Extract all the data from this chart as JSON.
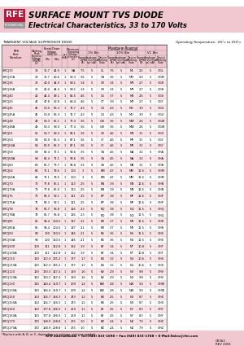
{
  "title1": "SURFACE MOUNT TVS DIODE",
  "title2": "Electrical Characteristics, 33 to 170 Volts",
  "header_bg": "#f2c8d0",
  "table_header_bg": "#f2c8d0",
  "table_row_even": "#fce4e8",
  "table_row_odd": "#ffffff",
  "logo_red": "#b8193c",
  "logo_gray": "#999999",
  "footer_text": "RFE International • Tel:(949) 833-1098 • Fax:(949) 833-1788 • E-Mail:Sales@rfei.com",
  "doc_num": "CR363",
  "doc_date": "REV 2001",
  "table_title": "TRANSIENT VOLTAGE SUPPRESSOR DIODE",
  "operating_temp": "Operating Temperature: -65°c to 150°c",
  "note": "*Replace with A, B, or C, depending on wattage and size needed.",
  "rows": [
    [
      "SMCJ33",
      "33",
      "36.7",
      "44.9",
      "1",
      "NA",
      "7.5",
      "5",
      "CL",
      "7.6",
      "5",
      "ML",
      "2.5",
      "5",
      "GGL"
    ],
    [
      "SMCJ33A",
      "33",
      "36.7",
      "40.6",
      "1",
      "53.3",
      "3.6",
      "5",
      "CN",
      "3.6",
      "5",
      "MN",
      "2.9",
      "5",
      "GGM"
    ],
    [
      "SMCJ36",
      "36",
      "40.0",
      "44.9",
      "1",
      "58.1",
      "3.4",
      "5",
      "CR",
      "3.4",
      "5",
      "MR",
      "2.7",
      "5",
      "GGR"
    ],
    [
      "SMCJ36A",
      "36",
      "40.0",
      "44.4",
      "1",
      "58.1",
      "3.4",
      "5",
      "CR",
      "3.4",
      "5",
      "MR",
      "2.7",
      "5",
      "GGR"
    ],
    [
      "SMCJ40",
      "40",
      "44.4",
      "49.1",
      "1",
      "64.5",
      "4.6",
      "5",
      "CS",
      "3.7",
      "5",
      "MS",
      "2.6",
      "5",
      "GGS"
    ],
    [
      "SMCJ43",
      "43",
      "47.8",
      "52.8",
      "1",
      "69.4",
      "4.6",
      "5",
      "CT",
      "3.9",
      "5",
      "MT",
      "2.7",
      "5",
      "GGT"
    ],
    [
      "SMCJ45",
      "45",
      "50.0",
      "55.3",
      "1",
      "72.7",
      "4.3",
      "5",
      "CU",
      "4.3",
      "5",
      "MU",
      "3.0",
      "5",
      "GGU"
    ],
    [
      "SMCJ45A",
      "45",
      "50.0",
      "55.3",
      "1",
      "72.7",
      "4.3",
      "5",
      "CU",
      "4.3",
      "5",
      "MU",
      "3.0",
      "5",
      "GGU"
    ],
    [
      "SMCJ48",
      "48",
      "53.3",
      "65.1",
      "1",
      "77.4",
      "3.6",
      "5",
      "CW",
      "3.6",
      "5",
      "MW",
      "2.6",
      "5",
      "GGW"
    ],
    [
      "SMCJ48A",
      "48",
      "53.3",
      "58.9",
      "1",
      "77.4",
      "3.6",
      "5",
      "CW",
      "3.6",
      "5",
      "MW",
      "2.6",
      "5",
      "GGW"
    ],
    [
      "SMCJ51",
      "51",
      "56.7",
      "69.3",
      "1",
      "83.1",
      "3.6",
      "5",
      "CX",
      "4.6",
      "5",
      "MX",
      "3.1",
      "5",
      "GGX"
    ],
    [
      "SMCJ54",
      "54",
      "60.0",
      "66.3",
      "1",
      "87.1",
      "3.6",
      "5",
      "CY",
      "4.6",
      "5",
      "MY",
      "3.1",
      "5",
      "GGY"
    ],
    [
      "SMCJ54A",
      "54",
      "60.0",
      "66.3",
      "1",
      "87.1",
      "3.6",
      "5",
      "CY",
      "4.6",
      "5",
      "MY",
      "3.1",
      "5",
      "GGY"
    ],
    [
      "SMCJ58",
      "58",
      "64.4",
      "71.1",
      "1",
      "93.6",
      "3.5",
      "5",
      "CA",
      "4.5",
      "5",
      "NA",
      "3.2",
      "5",
      "GHA"
    ],
    [
      "SMCJ58A",
      "58",
      "64.4",
      "71.1",
      "1",
      "93.6",
      "3.5",
      "5",
      "CA",
      "4.5",
      "5",
      "NA",
      "3.2",
      "5",
      "GHA"
    ],
    [
      "SMCJ60",
      "60",
      "66.7",
      "73.7",
      "1",
      "96.8",
      "3.3",
      "5",
      "CB",
      "4.5",
      "5",
      "NB",
      "3.1",
      "5",
      "GHB"
    ],
    [
      "SMCJ64",
      "64",
      "71.1",
      "78.6",
      "1",
      "103",
      "3",
      "5",
      "BM",
      "4.7",
      "5",
      "NM",
      "11.6",
      "5",
      "GHM"
    ],
    [
      "SMCJ64A",
      "64",
      "71.1",
      "78.6",
      "1",
      "103",
      "3",
      "5",
      "BM",
      "4.7",
      "5",
      "NM",
      "11.6",
      "5",
      "GHM"
    ],
    [
      "SMCJ70",
      "70",
      "77.8",
      "86.1",
      "1",
      "113",
      "2.5",
      "5",
      "BN",
      "3.9",
      "5",
      "NN",
      "12.6",
      "5",
      "GHN"
    ],
    [
      "SMCJ70A",
      "70",
      "77.8",
      "86.0",
      "1",
      "113",
      "2.5",
      "5",
      "BN",
      "3.9",
      "5",
      "NN",
      "12.6",
      "5",
      "GHN"
    ],
    [
      "SMCJ75",
      "75",
      "83.3",
      "92.1",
      "1",
      "121",
      "2.5",
      "5",
      "BP",
      "3.8",
      "5",
      "NP",
      "12.6",
      "5",
      "GHP"
    ],
    [
      "SMCJ75A",
      "75",
      "83.3",
      "92.1",
      "1",
      "121",
      "2.5",
      "5",
      "BP",
      "3.8",
      "5",
      "NP",
      "12.6",
      "5",
      "GHP"
    ],
    [
      "SMCJ78",
      "78",
      "86.7",
      "95.8",
      "1",
      "126",
      "2.3",
      "5",
      "BQ",
      "3.8",
      "5",
      "NQ",
      "11.5",
      "5",
      "GHQ"
    ],
    [
      "SMCJ78A",
      "78",
      "86.7",
      "95.8",
      "1",
      "126",
      "2.3",
      "5",
      "BQ",
      "3.8",
      "5",
      "NQ",
      "11.5",
      "5",
      "GHQ"
    ],
    [
      "SMCJ85",
      "85",
      "94.4",
      "104.5",
      "1",
      "137",
      "2.1",
      "5",
      "BR",
      "3.7",
      "5",
      "NR",
      "11.5",
      "5",
      "GHR"
    ],
    [
      "SMCJ85A",
      "85",
      "94.4",
      "104.5",
      "1",
      "137",
      "2.1",
      "5",
      "BR",
      "3.7",
      "5",
      "NR",
      "11.5",
      "5",
      "GHR"
    ],
    [
      "SMCJ90",
      "90",
      "100",
      "110.5",
      "1",
      "146",
      "2.1",
      "5",
      "BS",
      "3.6",
      "5",
      "NS",
      "11.5",
      "5",
      "GHS"
    ],
    [
      "SMCJ90A",
      "90",
      "100",
      "110.5",
      "1",
      "146",
      "2.1",
      "5",
      "BS",
      "3.6",
      "5",
      "NS",
      "11.5",
      "5",
      "GHS"
    ],
    [
      "SMCJ100",
      "100",
      "111",
      "122.8",
      "1",
      "162",
      "1.9",
      "5",
      "BT",
      "3.4",
      "5",
      "NT",
      "10.8",
      "5",
      "GHT"
    ],
    [
      "SMCJ100A",
      "100",
      "111",
      "122.8",
      "1",
      "162",
      "1.9",
      "5",
      "BT",
      "3.4",
      "5",
      "NT",
      "10.8",
      "5",
      "GHT"
    ],
    [
      "SMCJ110",
      "110",
      "122.3",
      "135.2",
      "1",
      "177",
      "1.7",
      "5",
      "BU",
      "3.2",
      "5",
      "NU",
      "10.6",
      "5",
      "GHU"
    ],
    [
      "SMCJ110A",
      "110",
      "122.3",
      "135.2",
      "1",
      "177",
      "1.7",
      "5",
      "BU",
      "3.2",
      "5",
      "NU",
      "10.6",
      "5",
      "GHU"
    ],
    [
      "SMCJ120",
      "120",
      "133.3",
      "147.4",
      "1",
      "193",
      "1.6",
      "5",
      "BV",
      "2.9",
      "5",
      "NV",
      "9.8",
      "5",
      "GHV"
    ],
    [
      "SMCJ120A",
      "120",
      "133.3",
      "147.4",
      "1",
      "193",
      "1.6",
      "5",
      "BV",
      "2.9",
      "5",
      "NV",
      "9.8",
      "5",
      "GHV"
    ],
    [
      "SMCJ130",
      "130",
      "144.4",
      "159.7",
      "1",
      "209",
      "1.4",
      "5",
      "BW",
      "2.8",
      "5",
      "NW",
      "9.4",
      "5",
      "GHW"
    ],
    [
      "SMCJ130A",
      "130",
      "144.4",
      "159.7",
      "1",
      "209",
      "1.4",
      "5",
      "BW",
      "2.8",
      "5",
      "NW",
      "9.4",
      "5",
      "GHW"
    ],
    [
      "SMCJ150",
      "150",
      "166.7",
      "184.3",
      "1",
      "243",
      "1.2",
      "5",
      "BX",
      "2.5",
      "5",
      "NX",
      "8.7",
      "5",
      "GHX"
    ],
    [
      "SMCJ150A",
      "150",
      "166.7",
      "184.3",
      "1",
      "243",
      "1.2",
      "5",
      "BX",
      "2.5",
      "5",
      "NX",
      "8.7",
      "5",
      "GHX"
    ],
    [
      "SMCJ160",
      "160",
      "177.8",
      "196.5",
      "1",
      "259",
      "1.1",
      "5",
      "BY",
      "2.5",
      "5",
      "NY",
      "8.3",
      "5",
      "GHY"
    ],
    [
      "SMCJ160A",
      "160",
      "177.8",
      "196.5",
      "1",
      "259",
      "1.1",
      "5",
      "BY",
      "2.5",
      "5",
      "NY",
      "8.3",
      "5",
      "GHY"
    ],
    [
      "SMCJ170",
      "170",
      "188.9",
      "208.8",
      "1",
      "275",
      "1.0",
      "5",
      "BZ",
      "2.4",
      "5",
      "NZ",
      "7.9",
      "5",
      "GHZ"
    ],
    [
      "SMCJ170A",
      "170",
      "188.9",
      "208.8",
      "1",
      "275",
      "1.0",
      "5",
      "BZ",
      "2.4",
      "5",
      "NZ",
      "7.9",
      "5",
      "GHZ"
    ]
  ]
}
